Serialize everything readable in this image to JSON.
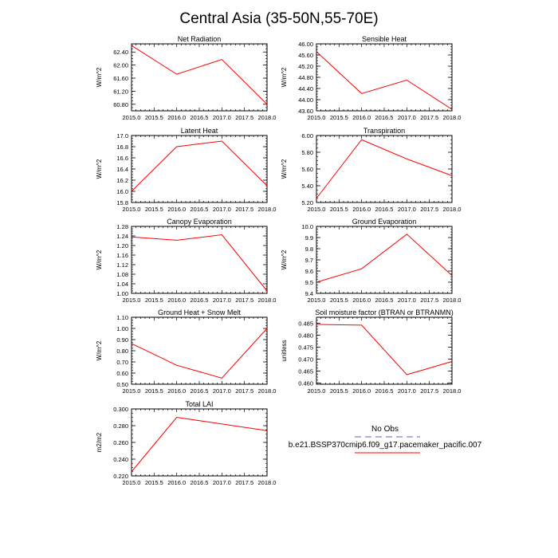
{
  "figure": {
    "title": "Central Asia (35-50N,55-70E)",
    "legend": {
      "entries": [
        {
          "label": "No Obs",
          "color": "#9999cc",
          "style": "dashed"
        },
        {
          "label": "b.e21.BSSP370cmip6.f09_g17.pacemaker_pacific.007",
          "color": "#ff0000",
          "style": "solid"
        }
      ]
    }
  },
  "chart_data": [
    {
      "type": "line",
      "title": "Net Radiation",
      "xlabel": "",
      "ylabel": "W/m^2",
      "x": [
        2015,
        2016,
        2017,
        2018
      ],
      "values": [
        62.6,
        61.72,
        62.17,
        60.8
      ],
      "xlim": [
        2015,
        2018
      ],
      "ylim": [
        60.6,
        62.65
      ],
      "xticks": [
        "2015.0",
        "2015.5",
        "2016.0",
        "2016.5",
        "2017.0",
        "2017.5",
        "2018.0"
      ],
      "yticks": [
        "60.80",
        "61.20",
        "61.60",
        "62.00",
        "62.40"
      ],
      "color": "#ff0000"
    },
    {
      "type": "line",
      "title": "Sensible Heat",
      "xlabel": "",
      "ylabel": "W/m^2",
      "x": [
        2015,
        2016,
        2017,
        2018
      ],
      "values": [
        45.72,
        44.22,
        44.7,
        43.65
      ],
      "xlim": [
        2015,
        2018
      ],
      "ylim": [
        43.6,
        46.0
      ],
      "xticks": [
        "2015.0",
        "2015.5",
        "2016.0",
        "2016.5",
        "2017.0",
        "2017.5",
        "2018.0"
      ],
      "yticks": [
        "43.60",
        "44.00",
        "44.40",
        "44.80",
        "45.20",
        "45.60",
        "46.00"
      ],
      "color": "#ff0000"
    },
    {
      "type": "line",
      "title": "Latent Heat",
      "xlabel": "",
      "ylabel": "W/m^2",
      "x": [
        2015,
        2016,
        2017,
        2018
      ],
      "values": [
        16.0,
        16.8,
        16.9,
        16.1
      ],
      "xlim": [
        2015,
        2018
      ],
      "ylim": [
        15.8,
        17.0
      ],
      "xticks": [
        "2015.0",
        "2015.5",
        "2016.0",
        "2016.5",
        "2017.0",
        "2017.5",
        "2018.0"
      ],
      "yticks": [
        "15.8",
        "16.0",
        "16.2",
        "16.4",
        "16.6",
        "16.8",
        "17.0"
      ],
      "color": "#ff0000"
    },
    {
      "type": "line",
      "title": "Transpiration",
      "xlabel": "",
      "ylabel": "W/m^2",
      "x": [
        2015,
        2016,
        2017,
        2018
      ],
      "values": [
        5.25,
        5.95,
        5.72,
        5.52
      ],
      "xlim": [
        2015,
        2018
      ],
      "ylim": [
        5.2,
        6.0
      ],
      "xticks": [
        "2015.0",
        "2015.5",
        "2016.0",
        "2016.5",
        "2017.0",
        "2017.5",
        "2018.0"
      ],
      "yticks": [
        "5.20",
        "5.40",
        "5.60",
        "5.80",
        "6.00"
      ],
      "color": "#ff0000"
    },
    {
      "type": "line",
      "title": "Canopy Evaporation",
      "xlabel": "",
      "ylabel": "W/m^2",
      "x": [
        2015,
        2016,
        2017,
        2018
      ],
      "values": [
        1.236,
        1.222,
        1.245,
        1.01
      ],
      "xlim": [
        2015,
        2018
      ],
      "ylim": [
        1.0,
        1.28
      ],
      "xticks": [
        "2015.0",
        "2015.5",
        "2016.0",
        "2016.5",
        "2017.0",
        "2017.5",
        "2018.0"
      ],
      "yticks": [
        "1.00",
        "1.04",
        "1.08",
        "1.12",
        "1.16",
        "1.20",
        "1.24",
        "1.28"
      ],
      "color": "#ff0000"
    },
    {
      "type": "line",
      "title": "Ground Evaporation",
      "xlabel": "",
      "ylabel": "W/m^2",
      "x": [
        2015,
        2016,
        2017,
        2018
      ],
      "values": [
        9.5,
        9.62,
        9.93,
        9.56
      ],
      "xlim": [
        2015,
        2018
      ],
      "ylim": [
        9.4,
        10.0
      ],
      "xticks": [
        "2015.0",
        "2015.5",
        "2016.0",
        "2016.5",
        "2017.0",
        "2017.5",
        "2018.0"
      ],
      "yticks": [
        "9.4",
        "9.5",
        "9.6",
        "9.7",
        "9.8",
        "9.9",
        "10.0"
      ],
      "color": "#ff0000"
    },
    {
      "type": "line",
      "title": "Ground Heat + Snow Melt",
      "xlabel": "",
      "ylabel": "W/m^2",
      "x": [
        2015,
        2016,
        2017,
        2018
      ],
      "values": [
        0.865,
        0.67,
        0.555,
        1.0
      ],
      "xlim": [
        2015,
        2018
      ],
      "ylim": [
        0.5,
        1.1
      ],
      "xticks": [
        "2015.0",
        "2015.5",
        "2016.0",
        "2016.5",
        "2017.0",
        "2017.5",
        "2018.0"
      ],
      "yticks": [
        "0.50",
        "0.60",
        "0.70",
        "0.80",
        "0.90",
        "1.00",
        "1.10"
      ],
      "color": "#ff0000"
    },
    {
      "type": "line",
      "title": "Soil moisture factor (BTRAN or BTRANMN)",
      "xlabel": "",
      "ylabel": "unitless",
      "x": [
        2015,
        2016,
        2017,
        2018
      ],
      "values": [
        0.4845,
        0.4842,
        0.4635,
        0.469
      ],
      "xlim": [
        2015,
        2018
      ],
      "ylim": [
        0.4595,
        0.4875
      ],
      "xticks": [
        "2015.0",
        "2015.5",
        "2016.0",
        "2016.5",
        "2017.0",
        "2017.5",
        "2018.0"
      ],
      "yticks": [
        "0.460",
        "0.465",
        "0.470",
        "0.475",
        "0.480",
        "0.485"
      ],
      "color": "#ff0000"
    },
    {
      "type": "line",
      "title": "Total LAI",
      "xlabel": "",
      "ylabel": "m2/m2",
      "x": [
        2015,
        2016,
        2017,
        2018
      ],
      "values": [
        0.225,
        0.29,
        0.282,
        0.274
      ],
      "xlim": [
        2015,
        2018
      ],
      "ylim": [
        0.22,
        0.3
      ],
      "xticks": [
        "2015.0",
        "2015.5",
        "2016.0",
        "2016.5",
        "2017.0",
        "2017.5",
        "2018.0"
      ],
      "yticks": [
        "0.220",
        "0.240",
        "0.260",
        "0.280",
        "0.300"
      ],
      "color": "#ff0000"
    }
  ]
}
